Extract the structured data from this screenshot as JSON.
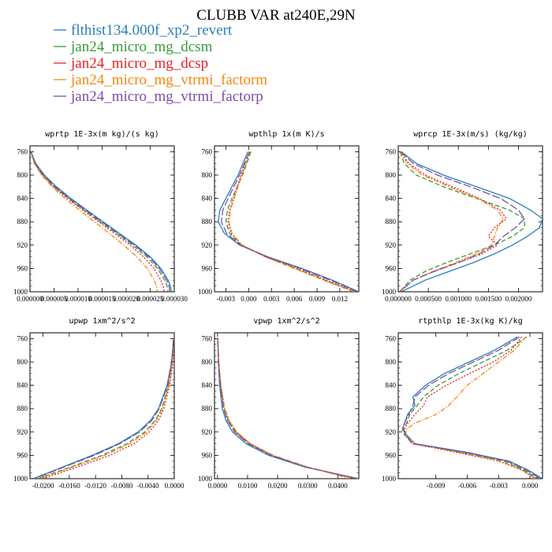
{
  "figure_title": "CLUBB VAR at240E,29N",
  "colors": {
    "flthist134.000f_xp2_revert": "#2a7fb8",
    "jan24_micro_mg_dcsm": "#3a9a3a",
    "jan24_micro_mg_dcsp": "#e8202a",
    "jan24_micro_mg_vtrmi_factorm": "#f5880f",
    "jan24_micro_mg_vtrmi_factorp": "#7a4fa8"
  },
  "legend": [
    {
      "label": "flthist134.000f_xp2_revert",
      "dash": "solid"
    },
    {
      "label": "jan24_micro_mg_dcsm",
      "dash": "dashed"
    },
    {
      "label": "jan24_micro_mg_dcsp",
      "dash": "dotted"
    },
    {
      "label": "jan24_micro_mg_vtrmi_factorm",
      "dash": "dashdot"
    },
    {
      "label": "jan24_micro_mg_vtrmi_factorp",
      "dash": "longdash"
    }
  ],
  "chart_data": [
    {
      "type": "line",
      "title": "wprtp  1E-3x(m kg)/(s kg)",
      "xlim": [
        0.0,
        3e-05
      ],
      "ylim": [
        1000,
        750
      ],
      "y_ticks": [
        760,
        800,
        840,
        880,
        920,
        960,
        1000
      ],
      "x_tick_labels": [
        "0.000000",
        "0.000005",
        "0.000010",
        "0.000015",
        "0.000020",
        "0.000025",
        "0.000030"
      ],
      "y": [
        760,
        780,
        800,
        820,
        840,
        860,
        880,
        900,
        920,
        940,
        960,
        980,
        990,
        1000
      ],
      "series": [
        {
          "name": "flthist134.000f_xp2_revert",
          "values": [
            2e-07,
            1.2e-06,
            3e-06,
            5.5e-06,
            8.5e-06,
            1.18e-05,
            1.52e-05,
            1.86e-05,
            2.2e-05,
            2.5e-05,
            2.72e-05,
            2.87e-05,
            2.92e-05,
            2.94e-05
          ]
        },
        {
          "name": "jan24_micro_mg_dcsm",
          "values": [
            2e-07,
            1e-06,
            2.6e-06,
            5e-06,
            8e-06,
            1.12e-05,
            1.46e-05,
            1.8e-05,
            2.13e-05,
            2.43e-05,
            2.65e-05,
            2.8e-05,
            2.85e-05,
            2.87e-05
          ]
        },
        {
          "name": "jan24_micro_mg_dcsp",
          "values": [
            2e-07,
            1e-06,
            2.6e-06,
            4.9e-06,
            7.8e-06,
            1.1e-05,
            1.43e-05,
            1.76e-05,
            2.08e-05,
            2.36e-05,
            2.58e-05,
            2.72e-05,
            2.77e-05,
            2.79e-05
          ]
        },
        {
          "name": "jan24_micro_mg_vtrmi_factorm",
          "values": [
            2e-07,
            9e-07,
            2.4e-06,
            4.6e-06,
            7.3e-06,
            1.03e-05,
            1.34e-05,
            1.65e-05,
            1.95e-05,
            2.22e-05,
            2.44e-05,
            2.58e-05,
            2.63e-05,
            2.65e-05
          ]
        },
        {
          "name": "jan24_micro_mg_vtrmi_factorp",
          "values": [
            2e-07,
            1.1e-06,
            2.8e-06,
            5.2e-06,
            8.2e-06,
            1.15e-05,
            1.49e-05,
            1.83e-05,
            2.17e-05,
            2.47e-05,
            2.69e-05,
            2.84e-05,
            2.89e-05,
            2.91e-05
          ]
        }
      ]
    },
    {
      "type": "line",
      "title": "wpthlp  1x(m K)/s",
      "xlim": [
        -0.0045,
        0.0145
      ],
      "ylim": [
        1000,
        750
      ],
      "y_ticks": [
        760,
        800,
        840,
        880,
        920,
        960,
        1000
      ],
      "x_ticks": [
        -0.003,
        0.0,
        0.003,
        0.006,
        0.009,
        0.012
      ],
      "x_tick_labels": [
        "-0.003",
        "0.000",
        "0.003",
        "0.006",
        "0.009",
        "0.012"
      ],
      "y": [
        760,
        800,
        840,
        860,
        880,
        900,
        920,
        940,
        960,
        980,
        1000
      ],
      "series": [
        {
          "name": "flthist134.000f_xp2_revert",
          "values": [
            -0.0001,
            -0.0014,
            -0.003,
            -0.0038,
            -0.004,
            -0.0032,
            -0.0012,
            0.0025,
            0.007,
            0.011,
            0.0145
          ]
        },
        {
          "name": "jan24_micro_mg_dcsm",
          "values": [
            0.0003,
            -0.0008,
            -0.0022,
            -0.0028,
            -0.003,
            -0.0025,
            -0.001,
            0.0022,
            0.0062,
            0.01,
            0.014
          ]
        },
        {
          "name": "jan24_micro_mg_dcsp",
          "values": [
            0.0001,
            -0.001,
            -0.002,
            -0.0025,
            -0.0027,
            -0.0023,
            -0.0009,
            0.0023,
            0.0065,
            0.0102,
            0.0142
          ]
        },
        {
          "name": "jan24_micro_mg_vtrmi_factorm",
          "values": [
            0.0002,
            -0.0009,
            -0.0019,
            -0.0024,
            -0.0026,
            -0.0022,
            -0.0008,
            0.0021,
            0.006,
            0.0098,
            0.0138
          ]
        },
        {
          "name": "jan24_micro_mg_vtrmi_factorp",
          "values": [
            0.0001,
            -0.0012,
            -0.0027,
            -0.0034,
            -0.0036,
            -0.0029,
            -0.0011,
            0.0024,
            0.0068,
            0.0107,
            0.0144
          ]
        }
      ]
    },
    {
      "type": "line",
      "title": "wprcp  1E-3x(m/s) (kg/kg)",
      "xlim": [
        0.0,
        0.0024
      ],
      "ylim": [
        1000,
        750
      ],
      "y_ticks": [
        760,
        800,
        840,
        880,
        920,
        960,
        1000
      ],
      "x_ticks": [
        0.0,
        0.0005,
        0.001,
        0.0015,
        0.002
      ],
      "x_tick_labels": [
        "0.000000",
        "0.000500",
        "0.001000",
        "0.001500",
        "0.002000"
      ],
      "y": [
        760,
        780,
        800,
        820,
        840,
        860,
        875,
        890,
        905,
        920,
        935,
        950,
        965,
        980,
        1000
      ],
      "series": [
        {
          "name": "flthist134.000f_xp2_revert",
          "values": [
            5e-05,
            0.0003,
            0.00075,
            0.0013,
            0.00185,
            0.0022,
            0.0024,
            0.00235,
            0.00215,
            0.0019,
            0.0016,
            0.00125,
            0.00085,
            0.00045,
            5e-05
          ]
        },
        {
          "name": "jan24_micro_mg_dcsm",
          "values": [
            3e-05,
            0.0001,
            0.0003,
            0.00075,
            0.0013,
            0.00185,
            0.0021,
            0.0021,
            0.0019,
            0.0016,
            0.0012,
            0.0008,
            0.00045,
            0.0002,
            2e-05
          ]
        },
        {
          "name": "jan24_micro_mg_dcsp",
          "values": [
            3e-05,
            0.00018,
            0.00045,
            0.0009,
            0.00135,
            0.0017,
            0.0018,
            0.0016,
            0.0015,
            0.00165,
            0.0014,
            0.001,
            0.0006,
            0.00025,
            2e-05
          ]
        },
        {
          "name": "jan24_micro_mg_vtrmi_factorm",
          "values": [
            3e-05,
            0.00015,
            0.0004,
            0.00085,
            0.00132,
            0.00165,
            0.00175,
            0.00165,
            0.0016,
            0.00155,
            0.0013,
            0.00095,
            0.00058,
            0.00025,
            2e-05
          ]
        },
        {
          "name": "jan24_micro_mg_vtrmi_factorp",
          "values": [
            4e-05,
            0.00025,
            0.00065,
            0.0012,
            0.0017,
            0.002,
            0.0021,
            0.00195,
            0.00175,
            0.0016,
            0.00135,
            0.001,
            0.0006,
            0.00025,
            3e-05
          ]
        }
      ]
    },
    {
      "type": "line",
      "title": "upwp  1xm^2/s^2",
      "xlim": [
        -0.022,
        0.0
      ],
      "ylim": [
        1000,
        750
      ],
      "y_ticks": [
        760,
        800,
        840,
        880,
        920,
        960,
        1000
      ],
      "x_ticks": [
        -0.02,
        -0.016,
        -0.012,
        -0.008,
        -0.004,
        0.0
      ],
      "x_tick_labels": [
        "-0.0200",
        "-0.0160",
        "-0.0120",
        "-0.0080",
        "-0.0040",
        "0.0000"
      ],
      "y": [
        760,
        800,
        840,
        880,
        900,
        920,
        940,
        960,
        980,
        1000
      ],
      "series": [
        {
          "name": "flthist134.000f_xp2_revert",
          "values": [
            -0.0001,
            -0.0004,
            -0.0011,
            -0.0024,
            -0.0036,
            -0.0055,
            -0.0085,
            -0.0125,
            -0.017,
            -0.0215
          ]
        },
        {
          "name": "jan24_micro_mg_dcsm",
          "values": [
            -0.0001,
            -0.0003,
            -0.0009,
            -0.0019,
            -0.0029,
            -0.0045,
            -0.0072,
            -0.011,
            -0.0158,
            -0.0208
          ]
        },
        {
          "name": "jan24_micro_mg_dcsp",
          "values": [
            -0.0001,
            -0.0002,
            -0.0007,
            -0.0016,
            -0.0024,
            -0.0038,
            -0.0061,
            -0.0098,
            -0.0148,
            -0.02
          ]
        },
        {
          "name": "jan24_micro_mg_vtrmi_factorm",
          "values": [
            -0.0001,
            -0.0003,
            -0.0008,
            -0.0018,
            -0.0027,
            -0.0042,
            -0.0068,
            -0.0106,
            -0.0155,
            -0.0205
          ]
        },
        {
          "name": "jan24_micro_mg_vtrmi_factorp",
          "values": [
            -0.0001,
            -0.0004,
            -0.001,
            -0.0023,
            -0.0034,
            -0.0053,
            -0.0083,
            -0.0122,
            -0.0168,
            -0.0213
          ]
        }
      ]
    },
    {
      "type": "line",
      "title": "vpwp  1xm^2/s^2",
      "xlim": [
        -0.001,
        0.047
      ],
      "ylim": [
        1000,
        750
      ],
      "y_ticks": [
        760,
        800,
        840,
        880,
        920,
        960,
        1000
      ],
      "x_ticks": [
        0.0,
        0.01,
        0.02,
        0.03,
        0.04
      ],
      "x_tick_labels": [
        "0.0000",
        "0.0100",
        "0.0200",
        "0.0300",
        "0.0400"
      ],
      "y": [
        760,
        800,
        840,
        880,
        900,
        920,
        940,
        960,
        980,
        1000
      ],
      "series": [
        {
          "name": "flthist134.000f_xp2_revert",
          "values": [
            0.0001,
            0.0003,
            0.0007,
            0.0016,
            0.0028,
            0.005,
            0.0095,
            0.017,
            0.029,
            0.047
          ]
        },
        {
          "name": "jan24_micro_mg_dcsm",
          "values": [
            0.0001,
            0.0004,
            0.001,
            0.0022,
            0.0036,
            0.006,
            0.0105,
            0.018,
            0.0295,
            0.046
          ]
        },
        {
          "name": "jan24_micro_mg_dcsp",
          "values": [
            0.0001,
            0.0004,
            0.0011,
            0.0024,
            0.0038,
            0.0063,
            0.0108,
            0.0183,
            0.0297,
            0.0458
          ]
        },
        {
          "name": "jan24_micro_mg_vtrmi_factorm",
          "values": [
            0.0001,
            0.0004,
            0.0011,
            0.0024,
            0.0039,
            0.0064,
            0.011,
            0.0186,
            0.03,
            0.044
          ]
        },
        {
          "name": "jan24_micro_mg_vtrmi_factorp",
          "values": [
            0.0001,
            0.0003,
            0.0009,
            0.002,
            0.0033,
            0.0057,
            0.0102,
            0.0178,
            0.0293,
            0.0465
          ]
        }
      ]
    },
    {
      "type": "line",
      "title": "rtpthlp  1E-3x(kg K)/kg",
      "xlim": [
        -0.0126,
        0.0012
      ],
      "ylim": [
        1000,
        750
      ],
      "y_ticks": [
        760,
        800,
        840,
        880,
        920,
        960,
        1000
      ],
      "x_ticks": [
        -0.009,
        -0.006,
        -0.003,
        0.0
      ],
      "x_tick_labels": [
        "-0.009",
        "-0.006",
        "-0.003",
        "0.000"
      ],
      "y": [
        757,
        780,
        800,
        820,
        840,
        860,
        875,
        890,
        905,
        915,
        925,
        940,
        955,
        970,
        985,
        1000
      ],
      "series": [
        {
          "name": "flthist134.000f_xp2_revert",
          "values": [
            -0.0012,
            -0.0034,
            -0.0058,
            -0.0082,
            -0.01,
            -0.0112,
            -0.011,
            -0.0117,
            -0.012,
            -0.0122,
            -0.0118,
            -0.011,
            -0.006,
            -0.002,
            -0.0002,
            0.0012
          ]
        },
        {
          "name": "jan24_micro_mg_dcsm",
          "values": [
            -0.0003,
            -0.0022,
            -0.0045,
            -0.0068,
            -0.0088,
            -0.0102,
            -0.0108,
            -0.0115,
            -0.0118,
            -0.0122,
            -0.012,
            -0.0112,
            -0.0065,
            -0.0025,
            -0.0006,
            0.0008
          ]
        },
        {
          "name": "jan24_micro_mg_dcsp",
          "values": [
            -0.0008,
            -0.0018,
            -0.0035,
            -0.0058,
            -0.008,
            -0.0098,
            -0.0102,
            -0.011,
            -0.0117,
            -0.012,
            -0.0119,
            -0.0113,
            -0.007,
            -0.003,
            -0.0008,
            0.0006
          ]
        },
        {
          "name": "jan24_micro_mg_vtrmi_factorm",
          "values": [
            -0.0004,
            -0.0015,
            -0.003,
            -0.0045,
            -0.006,
            -0.007,
            -0.0078,
            -0.009,
            -0.011,
            -0.0118,
            -0.0119,
            -0.011,
            -0.0068,
            -0.0028,
            -0.0008,
            0.0005
          ]
        },
        {
          "name": "jan24_micro_mg_vtrmi_factorp",
          "values": [
            -0.001,
            -0.003,
            -0.0054,
            -0.0078,
            -0.0097,
            -0.011,
            -0.0112,
            -0.0116,
            -0.012,
            -0.0121,
            -0.0119,
            -0.0112,
            -0.0062,
            -0.0022,
            -0.0004,
            0.001
          ]
        }
      ]
    }
  ]
}
